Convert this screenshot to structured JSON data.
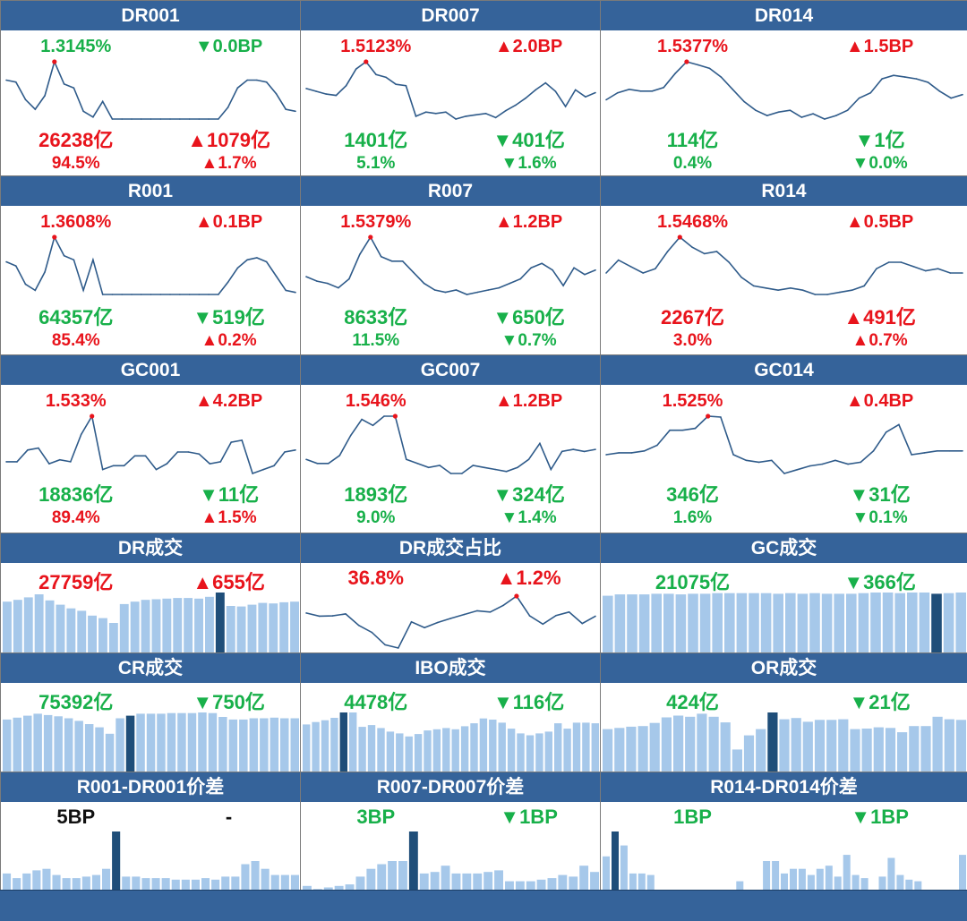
{
  "colors": {
    "header": "#35639a",
    "up": "#e8141c",
    "down": "#18b04a",
    "neutral": "#111111",
    "line": "#2f5b8a",
    "bar": "#a6c8ea",
    "bar_highlight": "#1f4e79"
  },
  "chart_data": [
    {
      "type": "line",
      "title": "DR001",
      "rate": "1.3145%",
      "rate_color": "down",
      "rate_change": "▼0.0BP",
      "rate_change_color": "down",
      "volume": "26238亿",
      "volume_color": "up",
      "volume_change": "▲1079亿",
      "volume_change_color": "up",
      "share": "94.5%",
      "share_color": "up",
      "share_change": "▲1.7%",
      "share_change_color": "up",
      "values": [
        1.22,
        1.21,
        1.12,
        1.07,
        1.14,
        1.3145,
        1.2,
        1.18,
        1.06,
        1.03,
        1.11,
        1.02,
        1.02,
        1.02,
        1.02,
        1.02,
        1.02,
        1.02,
        1.02,
        1.02,
        1.02,
        1.02,
        1.02,
        1.08,
        1.18,
        1.22,
        1.22,
        1.21,
        1.15,
        1.07,
        1.06
      ],
      "marker_index": 5
    },
    {
      "type": "line",
      "title": "DR007",
      "rate": "1.5123%",
      "rate_color": "up",
      "rate_change": "▲2.0BP",
      "rate_change_color": "up",
      "volume": "1401亿",
      "volume_color": "down",
      "volume_change": "▼401亿",
      "volume_change_color": "down",
      "share": "5.1%",
      "share_color": "down",
      "share_change": "▼1.6%",
      "share_change_color": "down",
      "values": [
        1.32,
        1.3,
        1.28,
        1.27,
        1.34,
        1.46,
        1.5123,
        1.42,
        1.4,
        1.35,
        1.34,
        1.12,
        1.15,
        1.14,
        1.15,
        1.1,
        1.12,
        1.13,
        1.14,
        1.11,
        1.16,
        1.2,
        1.25,
        1.31,
        1.36,
        1.3,
        1.19,
        1.31,
        1.26,
        1.29
      ],
      "marker_index": 6
    },
    {
      "type": "line",
      "title": "DR014",
      "rate": "1.5377%",
      "rate_color": "up",
      "rate_change": "▲1.5BP",
      "rate_change_color": "up",
      "volume": "114亿",
      "volume_color": "down",
      "volume_change": "▼1亿",
      "volume_change_color": "down",
      "share": "0.4%",
      "share_color": "down",
      "share_change": "▼0.0%",
      "share_change_color": "down",
      "values": [
        1.32,
        1.36,
        1.38,
        1.37,
        1.37,
        1.39,
        1.47,
        1.5377,
        1.52,
        1.5,
        1.45,
        1.38,
        1.31,
        1.26,
        1.23,
        1.25,
        1.26,
        1.22,
        1.24,
        1.21,
        1.23,
        1.26,
        1.33,
        1.36,
        1.44,
        1.46,
        1.45,
        1.44,
        1.42,
        1.37,
        1.33,
        1.35
      ],
      "marker_index": 7
    },
    {
      "type": "line",
      "title": "R001",
      "rate": "1.3608%",
      "rate_color": "up",
      "rate_change": "▲0.1BP",
      "rate_change_color": "up",
      "volume": "64357亿",
      "volume_color": "down",
      "volume_change": "▼519亿",
      "volume_change_color": "down",
      "share": "85.4%",
      "share_color": "up",
      "share_change": "▲0.2%",
      "share_change_color": "up",
      "values": [
        1.24,
        1.22,
        1.13,
        1.1,
        1.19,
        1.3608,
        1.27,
        1.25,
        1.1,
        1.25,
        1.08,
        1.08,
        1.08,
        1.08,
        1.08,
        1.08,
        1.08,
        1.08,
        1.08,
        1.08,
        1.08,
        1.08,
        1.08,
        1.14,
        1.21,
        1.25,
        1.26,
        1.24,
        1.17,
        1.1,
        1.09
      ],
      "marker_index": 5
    },
    {
      "type": "line",
      "title": "R007",
      "rate": "1.5379%",
      "rate_color": "up",
      "rate_change": "▲1.2BP",
      "rate_change_color": "up",
      "volume": "8633亿",
      "volume_color": "down",
      "volume_change": "▼650亿",
      "volume_change_color": "down",
      "share": "11.5%",
      "share_color": "down",
      "share_change": "▼0.7%",
      "share_change_color": "down",
      "values": [
        1.36,
        1.34,
        1.33,
        1.31,
        1.35,
        1.46,
        1.5379,
        1.45,
        1.43,
        1.43,
        1.38,
        1.33,
        1.3,
        1.29,
        1.3,
        1.28,
        1.29,
        1.3,
        1.31,
        1.33,
        1.35,
        1.4,
        1.42,
        1.39,
        1.32,
        1.4,
        1.37,
        1.39
      ],
      "marker_index": 6
    },
    {
      "type": "line",
      "title": "R014",
      "rate": "1.5468%",
      "rate_color": "up",
      "rate_change": "▲0.5BP",
      "rate_change_color": "up",
      "volume": "2267亿",
      "volume_color": "up",
      "volume_change": "▲491亿",
      "volume_change_color": "up",
      "share": "3.0%",
      "share_color": "up",
      "share_change": "▲0.7%",
      "share_change_color": "up",
      "values": [
        1.38,
        1.44,
        1.41,
        1.38,
        1.4,
        1.48,
        1.5468,
        1.5,
        1.47,
        1.48,
        1.43,
        1.36,
        1.32,
        1.31,
        1.3,
        1.31,
        1.3,
        1.28,
        1.28,
        1.29,
        1.3,
        1.32,
        1.4,
        1.43,
        1.43,
        1.41,
        1.39,
        1.4,
        1.38,
        1.38
      ],
      "marker_index": 6
    },
    {
      "type": "line",
      "title": "GC001",
      "rate": "1.533%",
      "rate_color": "up",
      "rate_change": "▲4.2BP",
      "rate_change_color": "up",
      "volume": "18836亿",
      "volume_color": "down",
      "volume_change": "▼11亿",
      "volume_change_color": "down",
      "share": "89.4%",
      "share_color": "up",
      "share_change": "▲1.5%",
      "share_change_color": "up",
      "values": [
        1.3,
        1.3,
        1.36,
        1.37,
        1.29,
        1.31,
        1.3,
        1.44,
        1.533,
        1.26,
        1.28,
        1.28,
        1.33,
        1.33,
        1.26,
        1.29,
        1.35,
        1.35,
        1.34,
        1.29,
        1.3,
        1.4,
        1.41,
        1.24,
        1.26,
        1.28,
        1.35,
        1.36
      ],
      "marker_index": 8
    },
    {
      "type": "line",
      "title": "GC007",
      "rate": "1.546%",
      "rate_color": "up",
      "rate_change": "▲1.2BP",
      "rate_change_color": "up",
      "volume": "1893亿",
      "volume_color": "down",
      "volume_change": "▼324亿",
      "volume_change_color": "down",
      "share": "9.0%",
      "share_color": "down",
      "share_change": "▼1.4%",
      "share_change_color": "down",
      "values": [
        1.33,
        1.31,
        1.31,
        1.35,
        1.45,
        1.53,
        1.5,
        1.546,
        1.546,
        1.33,
        1.31,
        1.29,
        1.3,
        1.26,
        1.26,
        1.3,
        1.29,
        1.28,
        1.27,
        1.29,
        1.33,
        1.41,
        1.28,
        1.37,
        1.38,
        1.37,
        1.38
      ],
      "marker_index": 8
    },
    {
      "type": "line",
      "title": "GC014",
      "rate": "1.525%",
      "rate_color": "up",
      "rate_change": "▲0.4BP",
      "rate_change_color": "up",
      "volume": "346亿",
      "volume_color": "down",
      "volume_change": "▼31亿",
      "volume_change_color": "down",
      "share": "1.6%",
      "share_color": "down",
      "share_change": "▼0.1%",
      "share_change_color": "down",
      "values": [
        1.32,
        1.33,
        1.33,
        1.34,
        1.37,
        1.45,
        1.45,
        1.46,
        1.525,
        1.52,
        1.32,
        1.29,
        1.28,
        1.29,
        1.22,
        1.24,
        1.26,
        1.27,
        1.29,
        1.27,
        1.28,
        1.34,
        1.44,
        1.48,
        1.32,
        1.33,
        1.34,
        1.34,
        1.34
      ],
      "marker_index": 8
    },
    {
      "type": "bar",
      "title": "DR成交",
      "volume": "27759亿",
      "volume_color": "up",
      "volume_change": "▲655亿",
      "volume_change_color": "up",
      "values": [
        85,
        88,
        92,
        97,
        87,
        80,
        74,
        70,
        62,
        58,
        50,
        81,
        85,
        88,
        89,
        90,
        91,
        91,
        90,
        93,
        100,
        78,
        77,
        80,
        83,
        82,
        84,
        85
      ],
      "highlight_index": 20
    },
    {
      "type": "line",
      "title": "DR成交占比",
      "volume": "36.8%",
      "volume_color": "up",
      "volume_change": "▲1.2%",
      "volume_change_color": "up",
      "values": [
        31.5,
        30.5,
        30.6,
        31.2,
        27.6,
        25.4,
        21.5,
        20.5,
        28.7,
        26.9,
        28.5,
        29.8,
        31.0,
        32.2,
        31.8,
        33.9,
        36.8,
        30.6,
        28.0,
        30.7,
        31.8,
        28.2,
        30.5
      ],
      "marker_index": 16
    },
    {
      "type": "bar",
      "title": "GC成交",
      "volume": "21075亿",
      "volume_color": "down",
      "volume_change": "▼366亿",
      "volume_change_color": "down",
      "values": [
        90,
        92,
        92,
        92,
        93,
        93,
        92,
        93,
        93,
        94,
        94,
        94,
        94,
        94,
        93,
        94,
        93,
        94,
        93,
        93,
        93,
        94,
        95,
        95,
        94,
        95,
        95,
        93,
        94,
        95
      ],
      "highlight_index": 27
    },
    {
      "type": "bar",
      "title": "CR成交",
      "volume": "75392亿",
      "volume_color": "down",
      "volume_change": "▼750亿",
      "volume_change_color": "down",
      "values": [
        82,
        85,
        88,
        91,
        89,
        87,
        84,
        80,
        75,
        70,
        60,
        84,
        88,
        91,
        91,
        91,
        92,
        92,
        92,
        93,
        92,
        86,
        82,
        82,
        84,
        84,
        85,
        84,
        84
      ],
      "highlight_index": 12
    },
    {
      "type": "bar",
      "title": "IBO成交",
      "volume": "4478亿",
      "volume_color": "down",
      "volume_change": "▼116亿",
      "volume_change_color": "down",
      "values": [
        80,
        84,
        87,
        91,
        100,
        100,
        76,
        79,
        74,
        68,
        65,
        60,
        64,
        70,
        72,
        74,
        72,
        77,
        82,
        90,
        88,
        83,
        73,
        65,
        62,
        65,
        68,
        82,
        73,
        83,
        83,
        82
      ],
      "highlight_index": 4
    },
    {
      "type": "bar",
      "title": "OR成交",
      "volume": "424亿",
      "volume_color": "down",
      "volume_change": "▼21亿",
      "volume_change_color": "down",
      "values": [
        70,
        72,
        74,
        75,
        80,
        89,
        92,
        90,
        95,
        90,
        81,
        37,
        60,
        70,
        97,
        86,
        88,
        82,
        85,
        85,
        86,
        70,
        71,
        73,
        72,
        65,
        75,
        75,
        90,
        86,
        85
      ],
      "highlight_index": 14
    },
    {
      "type": "bar",
      "title": "R001-DR001价差",
      "volume": "5BP",
      "volume_color": "neutral",
      "volume_change": "-",
      "volume_change_color": "neutral",
      "values": [
        11,
        8,
        11,
        13,
        14,
        10,
        8,
        8,
        9,
        10,
        14,
        38,
        9,
        9,
        8,
        8,
        8,
        7,
        7,
        7,
        8,
        7,
        9,
        9,
        17,
        19,
        14,
        10,
        10,
        10
      ],
      "highlight_index": 11
    },
    {
      "type": "bar",
      "title": "R007-DR007价差",
      "volume": "3BP",
      "volume_color": "down",
      "volume_change": "▼1BP",
      "volume_change_color": "down",
      "values": [
        3,
        1,
        2,
        3,
        4,
        9,
        14,
        17,
        19,
        19,
        38,
        11,
        12,
        16,
        11,
        11,
        11,
        12,
        13,
        6,
        6,
        6,
        7,
        8,
        10,
        9,
        16,
        12
      ],
      "highlight_index": 10
    },
    {
      "type": "bar",
      "title": "R014-DR014价差",
      "volume": "1BP",
      "volume_color": "down",
      "volume_change": "▼1BP",
      "volume_change_color": "down",
      "values": [
        22,
        38,
        29,
        11,
        11,
        10,
        0,
        0,
        0,
        0,
        0,
        0,
        0,
        0,
        0,
        6,
        0,
        0,
        19,
        19,
        11,
        14,
        14,
        10,
        14,
        16,
        9,
        23,
        10,
        8,
        0,
        9,
        21,
        10,
        7,
        6,
        0,
        0,
        0,
        0,
        23
      ],
      "highlight_index": 1
    }
  ]
}
